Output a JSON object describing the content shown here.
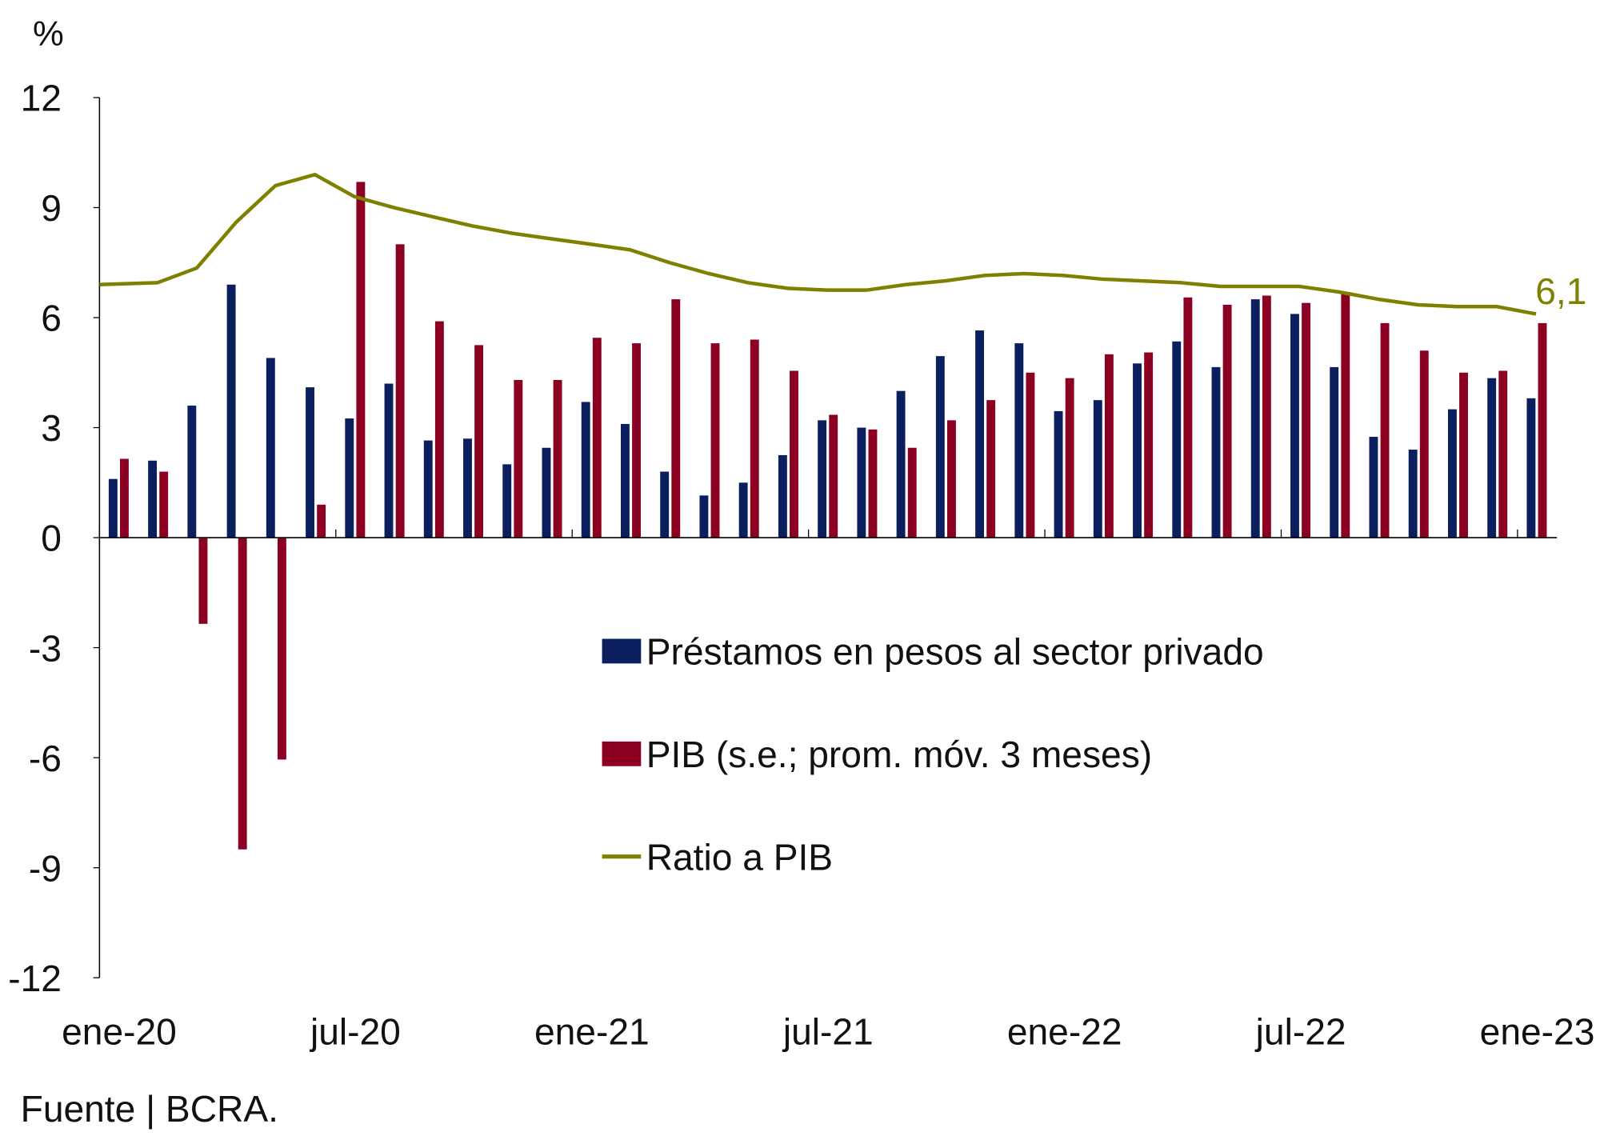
{
  "chart_data": {
    "type": "bar",
    "y_unit_label": "%",
    "ylim": [
      -12,
      12
    ],
    "yticks": [
      "12",
      "9",
      "6",
      "3",
      "0",
      "-3",
      "-6",
      "-9",
      "-12"
    ],
    "ytick_values": [
      12,
      9,
      6,
      3,
      0,
      -3,
      -6,
      -9,
      -12
    ],
    "grid": false,
    "legend_placement": "center-right",
    "x_months": [
      "ene-20",
      "feb-20",
      "mar-20",
      "abr-20",
      "may-20",
      "jun-20",
      "jul-20",
      "ago-20",
      "sep-20",
      "oct-20",
      "nov-20",
      "dic-20",
      "ene-21",
      "feb-21",
      "mar-21",
      "abr-21",
      "may-21",
      "jun-21",
      "jul-21",
      "ago-21",
      "sep-21",
      "oct-21",
      "nov-21",
      "dic-21",
      "ene-22",
      "feb-22",
      "mar-22",
      "abr-22",
      "may-22",
      "jun-22",
      "jul-22",
      "ago-22",
      "sep-22",
      "oct-22",
      "nov-22",
      "dic-22",
      "ene-23"
    ],
    "xtick_labels": [
      "ene-20",
      "jul-20",
      "ene-21",
      "jul-21",
      "ene-22",
      "jul-22",
      "ene-23"
    ],
    "series": [
      {
        "name": "Préstamos en pesos al sector privado",
        "type": "bar",
        "color": "#0b1f5e",
        "values": [
          1.6,
          2.1,
          3.6,
          6.9,
          4.9,
          4.1,
          3.25,
          4.2,
          2.65,
          2.7,
          2.0,
          2.45,
          3.7,
          3.1,
          1.8,
          1.15,
          1.5,
          2.25,
          3.2,
          3.0,
          4.0,
          4.95,
          5.65,
          5.3,
          3.45,
          3.75,
          4.75,
          5.35,
          4.65,
          6.5,
          6.1,
          4.65,
          2.75,
          2.4,
          3.5,
          4.35,
          3.8
        ]
      },
      {
        "name": "PIB (s.e.; prom. móv. 3 meses)",
        "type": "bar",
        "color": "#8c0022",
        "values": [
          2.15,
          1.8,
          -2.35,
          -8.5,
          -6.05,
          0.9,
          9.7,
          8.0,
          5.9,
          5.25,
          4.3,
          4.3,
          5.45,
          5.3,
          6.5,
          5.3,
          5.4,
          4.55,
          3.35,
          2.95,
          2.45,
          3.2,
          3.75,
          4.5,
          4.35,
          5.0,
          5.05,
          6.55,
          6.35,
          6.6,
          6.4,
          6.7,
          5.85,
          5.1,
          4.5,
          4.55,
          5.85
        ]
      },
      {
        "name": "Ratio a PIB",
        "type": "line",
        "color": "#7f7f00",
        "values": [
          6.9,
          6.95,
          7.35,
          8.6,
          9.6,
          9.9,
          9.3,
          9.0,
          8.75,
          8.5,
          8.3,
          8.15,
          8.0,
          7.85,
          7.5,
          7.2,
          6.95,
          6.8,
          6.75,
          6.75,
          6.9,
          7.0,
          7.15,
          7.2,
          7.15,
          7.05,
          7.0,
          6.95,
          6.85,
          6.85,
          6.85,
          6.7,
          6.5,
          6.35,
          6.3,
          6.3,
          6.1
        ]
      }
    ],
    "annotation": "6,1",
    "source": "Fuente | BCRA."
  }
}
